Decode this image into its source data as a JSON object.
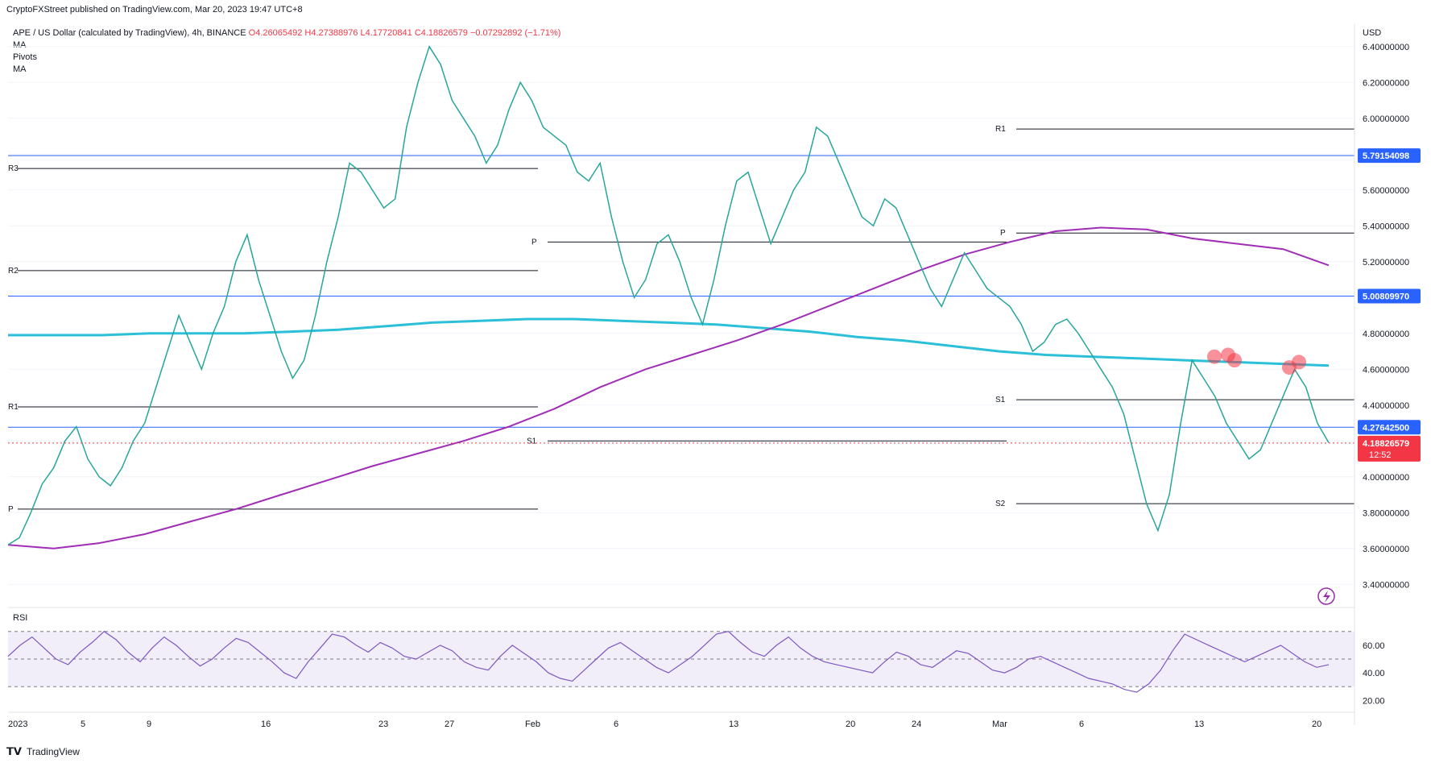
{
  "header": {
    "publisher_line": "CryptoFXStreet published on TradingView.com, Mar 20, 2023 19:47 UTC+8"
  },
  "legend": {
    "symbol": "APE / US Dollar (calculated by TradingView), 4h, BINANCE",
    "open": "O4.26065492",
    "high": "H4.27388976",
    "low": "L4.17720841",
    "close": "C4.18826579",
    "change": "−0.07292892 (−1.71%)",
    "indicators": [
      "MA",
      "Pivots",
      "MA"
    ]
  },
  "footer": {
    "brand": "TradingView"
  },
  "chart_data": {
    "type": "line",
    "currency_label": "USD",
    "ylim": [
      3.28,
      6.48
    ],
    "price_ticks": [
      "6.40000000",
      "6.20000000",
      "6.00000000",
      "5.80000000",
      "5.60000000",
      "5.40000000",
      "5.20000000",
      "5.00000000",
      "4.80000000",
      "4.60000000",
      "4.40000000",
      "4.20000000",
      "4.00000000",
      "3.80000000",
      "3.60000000",
      "3.40000000"
    ],
    "x_tick_labels": [
      "2023",
      "5",
      "9",
      "16",
      "23",
      "27",
      "Feb",
      "6",
      "13",
      "20",
      "24",
      "Mar",
      "6",
      "13",
      "20"
    ],
    "price_series": [
      3.62,
      3.66,
      3.8,
      3.96,
      4.05,
      4.2,
      4.28,
      4.1,
      4.0,
      3.95,
      4.05,
      4.2,
      4.3,
      4.5,
      4.7,
      4.9,
      4.75,
      4.6,
      4.8,
      4.95,
      5.2,
      5.35,
      5.1,
      4.9,
      4.7,
      4.55,
      4.65,
      4.9,
      5.2,
      5.45,
      5.75,
      5.7,
      5.6,
      5.5,
      5.55,
      5.95,
      6.2,
      6.4,
      6.3,
      6.1,
      6.0,
      5.9,
      5.75,
      5.85,
      6.05,
      6.2,
      6.1,
      5.95,
      5.9,
      5.85,
      5.7,
      5.65,
      5.75,
      5.45,
      5.2,
      5.0,
      5.1,
      5.3,
      5.35,
      5.2,
      5.0,
      4.85,
      5.1,
      5.4,
      5.65,
      5.7,
      5.5,
      5.3,
      5.45,
      5.6,
      5.7,
      5.95,
      5.9,
      5.75,
      5.6,
      5.45,
      5.4,
      5.55,
      5.5,
      5.35,
      5.2,
      5.05,
      4.95,
      5.1,
      5.25,
      5.15,
      5.05,
      5.0,
      4.95,
      4.85,
      4.7,
      4.75,
      4.85,
      4.88,
      4.8,
      4.7,
      4.6,
      4.5,
      4.35,
      4.1,
      3.85,
      3.7,
      3.9,
      4.3,
      4.65,
      4.55,
      4.45,
      4.3,
      4.2,
      4.1,
      4.15,
      4.3,
      4.45,
      4.6,
      4.5,
      4.3,
      4.19
    ],
    "current_price": 4.18826579,
    "current_price_label": "4.18826579",
    "countdown": "12:52",
    "horizontal_levels": [
      {
        "price": 5.79154098,
        "label": "5.79154098"
      },
      {
        "price": 5.0080997,
        "label": "5.00809970"
      },
      {
        "price": 4.276425,
        "label": "4.27642500"
      }
    ],
    "pivot_sets": [
      {
        "levels": [
          {
            "label": "R3",
            "price": 5.72
          },
          {
            "label": "R2",
            "price": 5.15
          },
          {
            "label": "R1",
            "price": 4.39
          },
          {
            "label": "P",
            "price": 3.82
          }
        ]
      },
      {
        "levels": [
          {
            "label": "P",
            "price": 5.31
          },
          {
            "label": "S1",
            "price": 4.2
          }
        ]
      },
      {
        "levels": [
          {
            "label": "R1",
            "price": 5.94
          },
          {
            "label": "P",
            "price": 5.36
          },
          {
            "label": "S1",
            "price": 4.43
          },
          {
            "label": "S2",
            "price": 3.85
          }
        ]
      }
    ],
    "ma_long": [
      4.79,
      4.79,
      4.79,
      4.8,
      4.8,
      4.8,
      4.81,
      4.82,
      4.84,
      4.86,
      4.87,
      4.88,
      4.88,
      4.87,
      4.86,
      4.85,
      4.83,
      4.81,
      4.78,
      4.76,
      4.73,
      4.7,
      4.68,
      4.67,
      4.66,
      4.65,
      4.64,
      4.63,
      4.62
    ],
    "ma_short": [
      3.62,
      3.6,
      3.63,
      3.68,
      3.75,
      3.82,
      3.9,
      3.98,
      4.06,
      4.13,
      4.2,
      4.28,
      4.38,
      4.5,
      4.6,
      4.68,
      4.76,
      4.85,
      4.95,
      5.05,
      5.15,
      5.24,
      5.31,
      5.37,
      5.39,
      5.38,
      5.33,
      5.3,
      5.27,
      5.18
    ],
    "resistance_markers": [
      4.67,
      4.68,
      4.65,
      4.61,
      4.64
    ],
    "rsi": {
      "label": "RSI",
      "ticks": [
        "60.00",
        "40.00",
        "20.00"
      ],
      "upper": 70,
      "middle": 50,
      "lower": 30,
      "values": [
        52,
        60,
        66,
        58,
        50,
        46,
        55,
        62,
        70,
        64,
        55,
        48,
        58,
        66,
        60,
        52,
        45,
        50,
        58,
        65,
        62,
        55,
        48,
        40,
        36,
        48,
        58,
        68,
        66,
        60,
        55,
        62,
        58,
        52,
        50,
        55,
        60,
        56,
        48,
        44,
        42,
        52,
        60,
        54,
        48,
        40,
        36,
        34,
        42,
        50,
        58,
        62,
        56,
        50,
        44,
        40,
        46,
        52,
        60,
        68,
        70,
        62,
        55,
        52,
        60,
        66,
        58,
        52,
        48,
        46,
        44,
        42,
        40,
        48,
        55,
        52,
        46,
        44,
        50,
        56,
        54,
        48,
        42,
        40,
        44,
        50,
        52,
        48,
        44,
        40,
        36,
        34,
        32,
        28,
        26,
        32,
        42,
        56,
        68,
        64,
        60,
        56,
        52,
        48,
        52,
        56,
        60,
        54,
        48,
        44,
        46
      ]
    }
  }
}
